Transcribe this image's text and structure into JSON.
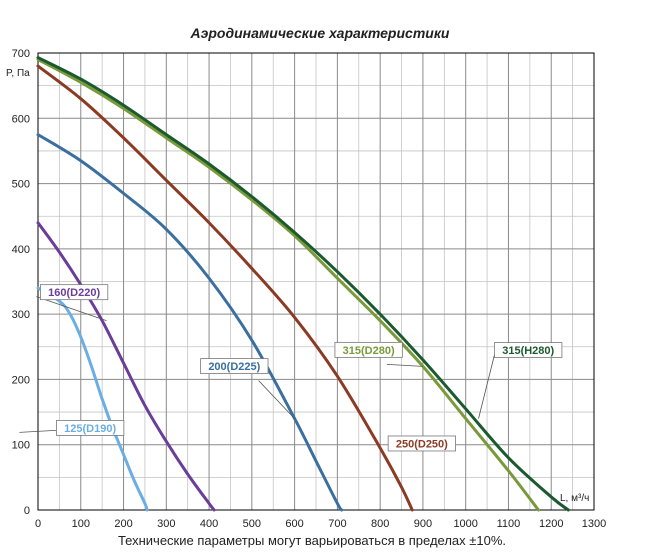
{
  "chart_data": {
    "type": "line",
    "title": "Аэродинамические характеристики",
    "xlabel": "L, м³/ч",
    "ylabel": "P, Па",
    "xlim": [
      0,
      1300
    ],
    "ylim": [
      0,
      700
    ],
    "x_major_ticks": [
      0,
      100,
      200,
      300,
      400,
      500,
      600,
      700,
      800,
      900,
      1000,
      1100,
      1200,
      1300
    ],
    "y_major_ticks": [
      0,
      100,
      200,
      300,
      400,
      500,
      600,
      700
    ],
    "grid": true,
    "footnote": "Технические параметры могут варьироваться в пределах ±10%.",
    "series": [
      {
        "name": "125(D190)",
        "color": "#6aaee4",
        "x": [
          0,
          50,
          75,
          100,
          125,
          150,
          175,
          200,
          225,
          250,
          255
        ],
        "y": [
          340,
          320,
          300,
          265,
          220,
          170,
          125,
          85,
          45,
          10,
          0
        ]
      },
      {
        "name": "160(D220)",
        "color": "#6a3d9a",
        "x": [
          0,
          50,
          100,
          150,
          200,
          250,
          300,
          350,
          400,
          412
        ],
        "y": [
          440,
          395,
          345,
          290,
          225,
          160,
          105,
          55,
          10,
          0
        ]
      },
      {
        "name": "200(D225)",
        "color": "#3a6f9f",
        "x": [
          0,
          100,
          200,
          300,
          400,
          500,
          600,
          650,
          700,
          710
        ],
        "y": [
          575,
          535,
          485,
          430,
          355,
          260,
          140,
          75,
          10,
          0
        ]
      },
      {
        "name": "250(D250)",
        "color": "#8b3a23",
        "x": [
          0,
          100,
          200,
          300,
          400,
          500,
          600,
          700,
          800,
          850,
          875
        ],
        "y": [
          680,
          630,
          570,
          505,
          440,
          370,
          295,
          205,
          95,
          35,
          0
        ]
      },
      {
        "name": "315(D280)",
        "color": "#7a9a3a",
        "x": [
          0,
          100,
          200,
          300,
          400,
          500,
          600,
          700,
          800,
          900,
          1000,
          1100,
          1170
        ],
        "y": [
          690,
          655,
          615,
          570,
          525,
          475,
          420,
          355,
          290,
          220,
          140,
          60,
          0
        ]
      },
      {
        "name": "315(H280)",
        "color": "#1a5a2e",
        "x": [
          0,
          100,
          200,
          300,
          400,
          500,
          600,
          700,
          800,
          900,
          1000,
          1100,
          1200,
          1240
        ],
        "y": [
          693,
          660,
          620,
          575,
          530,
          480,
          425,
          365,
          300,
          230,
          155,
          80,
          20,
          0
        ]
      }
    ],
    "labels": [
      {
        "text": "125(D190)",
        "series": "125(D190)",
        "anchor_x": 125,
        "anchor_y": 125
      },
      {
        "text": "160(D220)",
        "series": "160(D220)",
        "anchor_x": 160,
        "anchor_y": 290
      },
      {
        "text": "200(D225)",
        "series": "200(D225)",
        "anchor_x": 600,
        "anchor_y": 140
      },
      {
        "text": "250(D250)",
        "series": "250(D250)",
        "anchor_x": 800,
        "anchor_y": 95
      },
      {
        "text": "315(D280)",
        "series": "315(D280)",
        "anchor_x": 900,
        "anchor_y": 220
      },
      {
        "text": "315(H280)",
        "series": "315(H280)",
        "anchor_x": 1030,
        "anchor_y": 140
      }
    ]
  }
}
